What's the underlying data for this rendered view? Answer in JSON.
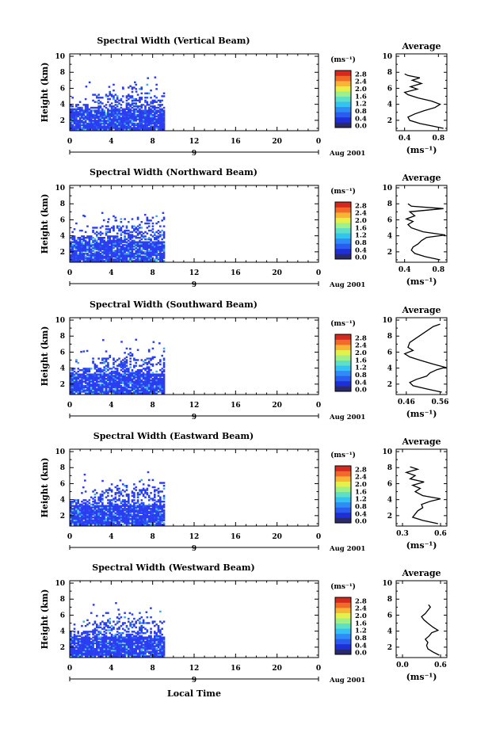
{
  "chart_data": {
    "type": "heatmap",
    "shared": {
      "ylabel": "Height (km)",
      "x_ticks": [
        "0",
        "4",
        "8",
        "12",
        "16",
        "20",
        "0"
      ],
      "x_range_hours": [
        0,
        24
      ],
      "y_ticks": [
        "2",
        "4",
        "6",
        "8",
        "10"
      ],
      "y_range_km": [
        0.7,
        10.3
      ],
      "date_day": "9",
      "date_label": "Aug 2001",
      "colorbar_unit": "(ms⁻¹)",
      "colorbar_ticks": [
        "0.0",
        "0.4",
        "0.8",
        "1.2",
        "1.6",
        "2.0",
        "2.4",
        "2.8"
      ],
      "colorbar_range": [
        0.0,
        2.8
      ],
      "avg_title": "Average",
      "avg_xlabel": "(ms⁻¹)",
      "avg_y_ticks": [
        "2",
        "4",
        "6",
        "8",
        "10"
      ],
      "xlabel": "Local Time",
      "data_extent_hours": [
        0,
        9
      ],
      "colors": {
        "colorbar": [
          "#2a2a6a",
          "#1f2fd8",
          "#2a5cf0",
          "#2f8cf6",
          "#34c2f2",
          "#5ee0c8",
          "#9ef08a",
          "#e6f04a",
          "#f7b435",
          "#f06a28",
          "#d42a1e"
        ],
        "dominant_echo": "#2b3df0",
        "light_echo": "#3fa8f0",
        "profile_line": "#000000"
      }
    },
    "panels": [
      {
        "title": "Spectral Width (Vertical Beam)",
        "avg_x_ticks": [
          "0.4",
          "0.8"
        ],
        "avg_x_range": [
          0.3,
          0.9
        ],
        "avg_profile": [
          {
            "h": 1.0,
            "v": 0.86
          },
          {
            "h": 1.3,
            "v": 0.72
          },
          {
            "h": 1.6,
            "v": 0.58
          },
          {
            "h": 2.0,
            "v": 0.46
          },
          {
            "h": 2.4,
            "v": 0.44
          },
          {
            "h": 2.8,
            "v": 0.52
          },
          {
            "h": 3.2,
            "v": 0.63
          },
          {
            "h": 3.6,
            "v": 0.76
          },
          {
            "h": 4.0,
            "v": 0.82
          },
          {
            "h": 4.4,
            "v": 0.72
          },
          {
            "h": 4.8,
            "v": 0.56
          },
          {
            "h": 5.2,
            "v": 0.44
          },
          {
            "h": 5.5,
            "v": 0.4
          },
          {
            "h": 5.9,
            "v": 0.55
          },
          {
            "h": 6.2,
            "v": 0.47
          },
          {
            "h": 6.6,
            "v": 0.6
          },
          {
            "h": 7.0,
            "v": 0.49
          },
          {
            "h": 7.3,
            "v": 0.58
          },
          {
            "h": 7.6,
            "v": 0.44
          },
          {
            "h": 7.8,
            "v": 0.4
          }
        ]
      },
      {
        "title": "Spectral Width (Northward Beam)",
        "avg_x_ticks": [
          "0.4",
          "0.8"
        ],
        "avg_x_range": [
          0.3,
          0.9
        ],
        "avg_profile": [
          {
            "h": 1.0,
            "v": 0.82
          },
          {
            "h": 1.4,
            "v": 0.64
          },
          {
            "h": 1.8,
            "v": 0.52
          },
          {
            "h": 2.2,
            "v": 0.48
          },
          {
            "h": 2.6,
            "v": 0.5
          },
          {
            "h": 3.0,
            "v": 0.56
          },
          {
            "h": 3.4,
            "v": 0.6
          },
          {
            "h": 3.8,
            "v": 0.66
          },
          {
            "h": 4.1,
            "v": 0.88
          },
          {
            "h": 4.5,
            "v": 0.62
          },
          {
            "h": 5.0,
            "v": 0.48
          },
          {
            "h": 5.4,
            "v": 0.44
          },
          {
            "h": 5.8,
            "v": 0.5
          },
          {
            "h": 6.1,
            "v": 0.42
          },
          {
            "h": 6.5,
            "v": 0.52
          },
          {
            "h": 7.0,
            "v": 0.46
          },
          {
            "h": 7.4,
            "v": 0.86
          },
          {
            "h": 7.7,
            "v": 0.48
          },
          {
            "h": 8.0,
            "v": 0.44
          }
        ]
      },
      {
        "title": "Spectral Width (Southward Beam)",
        "avg_x_ticks": [
          "0.46",
          "0.56"
        ],
        "avg_x_range": [
          0.43,
          0.58
        ],
        "avg_profile": [
          {
            "h": 1.0,
            "v": 0.565
          },
          {
            "h": 1.4,
            "v": 0.52
          },
          {
            "h": 1.8,
            "v": 0.48
          },
          {
            "h": 2.2,
            "v": 0.47
          },
          {
            "h": 2.6,
            "v": 0.49
          },
          {
            "h": 3.0,
            "v": 0.52
          },
          {
            "h": 3.4,
            "v": 0.53
          },
          {
            "h": 3.8,
            "v": 0.55
          },
          {
            "h": 4.1,
            "v": 0.575
          },
          {
            "h": 4.5,
            "v": 0.54
          },
          {
            "h": 5.0,
            "v": 0.5
          },
          {
            "h": 5.4,
            "v": 0.47
          },
          {
            "h": 5.8,
            "v": 0.455
          },
          {
            "h": 6.2,
            "v": 0.48
          },
          {
            "h": 6.6,
            "v": 0.465
          },
          {
            "h": 7.2,
            "v": 0.47
          },
          {
            "h": 9.2,
            "v": 0.54
          },
          {
            "h": 9.5,
            "v": 0.56
          }
        ]
      },
      {
        "title": "Spectral Width (Eastward Beam)",
        "avg_x_ticks": [
          "0.3",
          "0.6"
        ],
        "avg_x_range": [
          0.25,
          0.65
        ],
        "avg_profile": [
          {
            "h": 1.0,
            "v": 0.58
          },
          {
            "h": 1.4,
            "v": 0.46
          },
          {
            "h": 1.8,
            "v": 0.38
          },
          {
            "h": 2.2,
            "v": 0.4
          },
          {
            "h": 2.6,
            "v": 0.42
          },
          {
            "h": 3.0,
            "v": 0.46
          },
          {
            "h": 3.4,
            "v": 0.45
          },
          {
            "h": 3.8,
            "v": 0.52
          },
          {
            "h": 4.1,
            "v": 0.6
          },
          {
            "h": 4.5,
            "v": 0.46
          },
          {
            "h": 5.0,
            "v": 0.4
          },
          {
            "h": 5.4,
            "v": 0.44
          },
          {
            "h": 5.8,
            "v": 0.38
          },
          {
            "h": 6.2,
            "v": 0.47
          },
          {
            "h": 6.6,
            "v": 0.36
          },
          {
            "h": 7.0,
            "v": 0.4
          },
          {
            "h": 7.4,
            "v": 0.33
          },
          {
            "h": 7.8,
            "v": 0.42
          },
          {
            "h": 8.1,
            "v": 0.36
          }
        ]
      },
      {
        "title": "Spectral Width (Westward Beam)",
        "avg_x_ticks": [
          "0.0",
          "0.6"
        ],
        "avg_x_range": [
          -0.1,
          0.7
        ],
        "avg_profile": [
          {
            "h": 1.0,
            "v": 0.58
          },
          {
            "h": 1.4,
            "v": 0.48
          },
          {
            "h": 1.8,
            "v": 0.4
          },
          {
            "h": 2.2,
            "v": 0.38
          },
          {
            "h": 2.6,
            "v": 0.4
          },
          {
            "h": 3.0,
            "v": 0.36
          },
          {
            "h": 3.4,
            "v": 0.42
          },
          {
            "h": 3.8,
            "v": 0.46
          },
          {
            "h": 4.1,
            "v": 0.56
          },
          {
            "h": 4.5,
            "v": 0.48
          },
          {
            "h": 5.0,
            "v": 0.4
          },
          {
            "h": 5.4,
            "v": 0.34
          },
          {
            "h": 5.8,
            "v": 0.3
          },
          {
            "h": 6.2,
            "v": 0.36
          },
          {
            "h": 6.6,
            "v": 0.4
          },
          {
            "h": 7.0,
            "v": 0.44
          },
          {
            "h": 7.3,
            "v": 0.41
          }
        ]
      }
    ]
  }
}
